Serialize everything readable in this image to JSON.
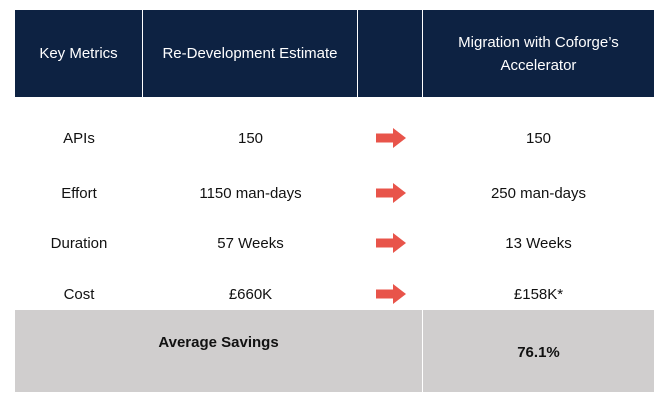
{
  "header": {
    "col1": "Key Metrics",
    "col2": "Re-Development Estimate",
    "col3": "",
    "col4_line1": "Migration with Coforge’s",
    "col4_line2": "Accelerator"
  },
  "rows": [
    {
      "metric": "APIs",
      "redev": "150",
      "migration": "150"
    },
    {
      "metric": "Effort",
      "redev": "1150 man-days",
      "migration": "250 man-days"
    },
    {
      "metric": "Duration",
      "redev": "57 Weeks",
      "migration": "13 Weeks"
    },
    {
      "metric": "Cost",
      "redev": "£660K",
      "migration": "£158K*"
    }
  ],
  "footer": {
    "label": "Average Savings",
    "value": "76.1%"
  },
  "colors": {
    "header_bg": "#0d2242",
    "arrow": "#e8544a",
    "footer_bg": "#d0cece"
  },
  "icons": {
    "arrow": "arrow-right-icon"
  }
}
